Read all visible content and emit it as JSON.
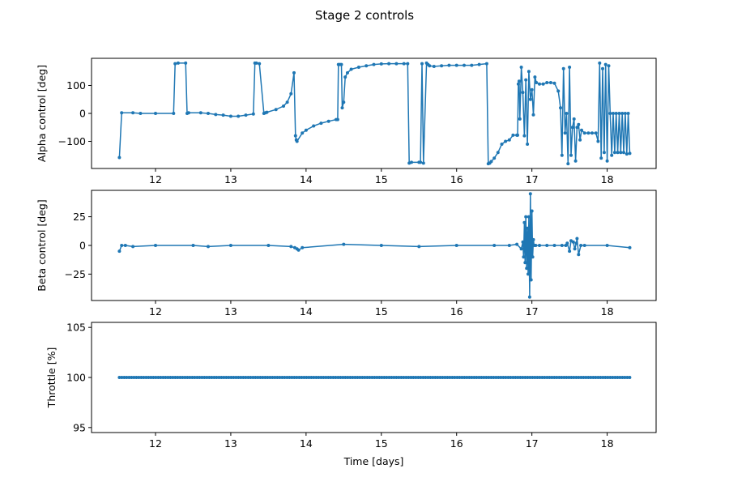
{
  "figure": {
    "title": "Stage 2 controls"
  },
  "chart_data": [
    {
      "type": "line",
      "ylabel": "Alpha control [deg]",
      "xlabel": "",
      "xlim": [
        11.15,
        18.65
      ],
      "ylim": [
        -197,
        197
      ],
      "xticks": [
        12,
        13,
        14,
        15,
        16,
        17,
        18
      ],
      "yticks": [
        -100,
        0,
        100
      ],
      "grid": false,
      "color": "#1f77b4",
      "series": [
        {
          "x": [
            11.52,
            11.55,
            11.7,
            11.8,
            12.0,
            12.24,
            12.26,
            12.3,
            12.4,
            12.42,
            12.44,
            12.6,
            12.7,
            12.8,
            12.9,
            13.0,
            13.1,
            13.2,
            13.3,
            13.32,
            13.34,
            13.38,
            13.44,
            13.46,
            13.48,
            13.6,
            13.7,
            13.75,
            13.8,
            13.84,
            13.86,
            13.87,
            13.88,
            13.95,
            14.0,
            14.1,
            14.2,
            14.3,
            14.4,
            14.42,
            14.43,
            14.45,
            14.47,
            14.48,
            14.5,
            14.52,
            14.55,
            14.6,
            14.7,
            14.8,
            14.9,
            15.0,
            15.1,
            15.2,
            15.3,
            15.35,
            15.37,
            15.4,
            15.5,
            15.52,
            15.54,
            15.56,
            15.6,
            15.62,
            15.64,
            15.7,
            15.8,
            15.9,
            16.0,
            16.1,
            16.2,
            16.3,
            16.4,
            16.42,
            16.44,
            16.46,
            16.5,
            16.55,
            16.6,
            16.65,
            16.7,
            16.75,
            16.8,
            16.81,
            16.82,
            16.83,
            16.84,
            16.86,
            16.88,
            16.9,
            16.92,
            16.94,
            16.96,
            16.98,
            17.0,
            17.02,
            17.04,
            17.06,
            17.1,
            17.15,
            17.2,
            17.25,
            17.3,
            17.35,
            17.38,
            17.4,
            17.42,
            17.44,
            17.46,
            17.48,
            17.5,
            17.52,
            17.54,
            17.56,
            17.58,
            17.6,
            17.62,
            17.64,
            17.66,
            17.7,
            17.75,
            17.8,
            17.85,
            17.88,
            17.9,
            17.92,
            17.94,
            17.96,
            17.98,
            18.0,
            18.02,
            18.04,
            18.06,
            18.08,
            18.1,
            18.12,
            18.14,
            18.16,
            18.18,
            18.2,
            18.22,
            18.24,
            18.26,
            18.28,
            18.3
          ],
          "y": [
            -158,
            2,
            2,
            0,
            0,
            0,
            178,
            180,
            180,
            0,
            2,
            2,
            0,
            -4,
            -6,
            -10,
            -10,
            -6,
            -2,
            180,
            180,
            178,
            0,
            2,
            4,
            14,
            26,
            40,
            70,
            145,
            -80,
            -95,
            -100,
            -70,
            -60,
            -45,
            -35,
            -28,
            -22,
            -22,
            175,
            175,
            175,
            20,
            40,
            130,
            145,
            158,
            165,
            170,
            175,
            177,
            178,
            178,
            178,
            178,
            -178,
            -175,
            -175,
            -175,
            178,
            -178,
            180,
            175,
            170,
            168,
            170,
            172,
            172,
            172,
            172,
            175,
            178,
            -180,
            -178,
            -172,
            -160,
            -140,
            -110,
            -100,
            -95,
            -78,
            -78,
            -78,
            105,
            115,
            -20,
            165,
            75,
            -80,
            120,
            -110,
            150,
            50,
            85,
            -5,
            130,
            110,
            105,
            105,
            110,
            110,
            108,
            80,
            20,
            -150,
            160,
            -70,
            0,
            -180,
            165,
            -150,
            -50,
            -20,
            -170,
            -50,
            -40,
            -95,
            -60,
            -70,
            -70,
            -70,
            -70,
            -100,
            180,
            -160,
            160,
            -140,
            175,
            -170,
            170,
            0,
            -150,
            0,
            -140,
            0,
            -140,
            0,
            -140,
            0,
            -140,
            0,
            -145,
            0,
            -143
          ]
        }
      ]
    },
    {
      "type": "line",
      "ylabel": "Beta control [deg]",
      "xlabel": "",
      "xlim": [
        11.15,
        18.65
      ],
      "ylim": [
        -48,
        48
      ],
      "xticks": [
        12,
        13,
        14,
        15,
        16,
        17,
        18
      ],
      "yticks": [
        -25,
        0,
        25
      ],
      "grid": false,
      "color": "#1f77b4",
      "series": [
        {
          "x": [
            11.52,
            11.55,
            11.6,
            11.7,
            12.0,
            12.5,
            12.7,
            13.0,
            13.5,
            13.8,
            13.85,
            13.88,
            13.9,
            13.95,
            14.5,
            15.0,
            15.5,
            16.0,
            16.5,
            16.7,
            16.8,
            16.86,
            16.88,
            16.89,
            16.9,
            16.91,
            16.92,
            16.93,
            16.94,
            16.95,
            16.96,
            16.97,
            16.98,
            16.99,
            17.0,
            17.01,
            17.02,
            17.03,
            17.05,
            17.1,
            17.2,
            17.3,
            17.4,
            17.45,
            17.47,
            17.5,
            17.52,
            17.55,
            17.57,
            17.59,
            17.6,
            17.62,
            17.65,
            17.7,
            18.0,
            18.3
          ],
          "y": [
            -5,
            0,
            0,
            -1,
            0,
            0,
            -1,
            0,
            0,
            -1,
            -2,
            -3,
            -4,
            -2,
            1,
            0,
            -1,
            0,
            0,
            0,
            1,
            -3,
            3,
            -10,
            20,
            -15,
            25,
            -20,
            15,
            -25,
            25,
            -45,
            45,
            -30,
            30,
            -10,
            5,
            0,
            0,
            0,
            0,
            0,
            0,
            0,
            2,
            -5,
            4,
            3,
            -3,
            2,
            6,
            -8,
            0,
            0,
            0,
            -2
          ]
        }
      ]
    },
    {
      "type": "line",
      "ylabel": "Throttle [%]",
      "xlabel": "Time [days]",
      "xlim": [
        11.15,
        18.65
      ],
      "ylim": [
        94.5,
        105.5
      ],
      "xticks": [
        12,
        13,
        14,
        15,
        16,
        17,
        18
      ],
      "yticks": [
        95,
        100,
        105
      ],
      "grid": false,
      "color": "#1f77b4",
      "series": [
        {
          "x": [
            11.52,
            12.0,
            13.0,
            14.0,
            15.0,
            16.0,
            17.0,
            18.0,
            18.3
          ],
          "y": [
            100,
            100,
            100,
            100,
            100,
            100,
            100,
            100,
            100
          ]
        }
      ]
    }
  ]
}
